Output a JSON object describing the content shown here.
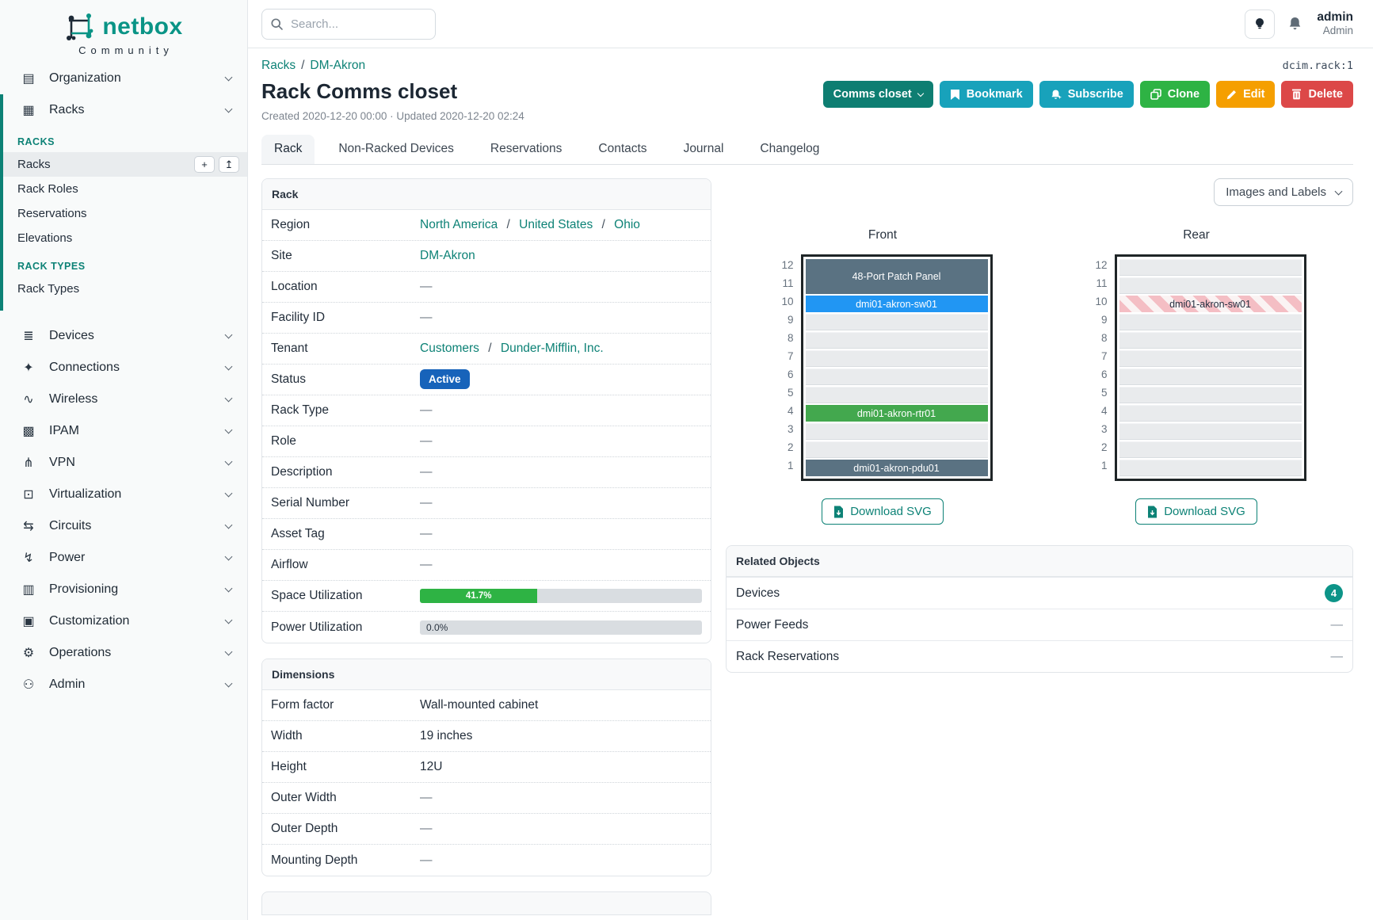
{
  "brand": {
    "name": "netbox",
    "subtitle": "Community"
  },
  "topbar": {
    "search_placeholder": "Search...",
    "username": "admin",
    "user_role": "Admin"
  },
  "breadcrumb": {
    "section": "Racks",
    "site": "DM-Akron",
    "object_ref": "dcim.rack:1"
  },
  "page": {
    "title": "Rack Comms closet",
    "meta": "Created 2020-12-20 00:00 · Updated 2020-12-20 02:24"
  },
  "actions": {
    "view_toggle": "Comms closet",
    "bookmark": "Bookmark",
    "subscribe": "Subscribe",
    "clone": "Clone",
    "edit": "Edit",
    "del": "Delete"
  },
  "tabs": {
    "rack": "Rack",
    "non_racked": "Non-Racked Devices",
    "reservations": "Reservations",
    "contacts": "Contacts",
    "journal": "Journal",
    "changelog": "Changelog"
  },
  "sidebar": {
    "organization": "Organization",
    "racks_parent": "Racks",
    "racks_group": {
      "header": "RACKS",
      "item_racks": "Racks",
      "item_rack_roles": "Rack Roles",
      "item_reservations": "Reservations",
      "item_elevations": "Elevations",
      "add_button": "+",
      "import_button": "↥"
    },
    "rack_types_group": {
      "header": "RACK TYPES",
      "item_rack_types": "Rack Types"
    },
    "bottom_items": [
      {
        "label": "Devices"
      },
      {
        "label": "Connections"
      },
      {
        "label": "Wireless"
      },
      {
        "label": "IPAM"
      },
      {
        "label": "VPN"
      },
      {
        "label": "Virtualization"
      },
      {
        "label": "Circuits"
      },
      {
        "label": "Power"
      },
      {
        "label": "Provisioning"
      },
      {
        "label": "Customization"
      },
      {
        "label": "Operations"
      },
      {
        "label": "Admin"
      }
    ],
    "icons": {
      "organization": "▤",
      "racks": "▦",
      "devices": "≣",
      "connections": "✦",
      "wireless": "∿",
      "ipam": "▩",
      "vpn": "⋔",
      "virtualization": "⊡",
      "circuits": "⇆",
      "power": "↯",
      "provisioning": "▥",
      "customization": "▣",
      "operations": "⚙",
      "admin": "⚇"
    }
  },
  "rack_panel": {
    "title": "Rack",
    "region_label": "Region",
    "region_links": [
      "North America",
      "United States",
      "Ohio"
    ],
    "site_label": "Site",
    "site_value": "DM-Akron",
    "location_label": "Location",
    "location_value": "—",
    "facility_label": "Facility ID",
    "facility_value": "—",
    "tenant_label": "Tenant",
    "tenant_links": [
      "Customers",
      "Dunder-Mifflin, Inc."
    ],
    "status_label": "Status",
    "status_value": "Active",
    "rack_type_label": "Rack Type",
    "rack_type_value": "—",
    "role_label": "Role",
    "role_value": "—",
    "description_label": "Description",
    "description_value": "—",
    "serial_label": "Serial Number",
    "serial_value": "—",
    "asset_label": "Asset Tag",
    "asset_value": "—",
    "airflow_label": "Airflow",
    "airflow_value": "—",
    "space_label": "Space Utilization",
    "space_percent": "41.7%",
    "power_label": "Power Utilization",
    "power_percent": "0.0%"
  },
  "dimensions_panel": {
    "title": "Dimensions",
    "form_factor_label": "Form factor",
    "form_factor_value": "Wall-mounted cabinet",
    "width_label": "Width",
    "width_value": "19 inches",
    "height_label": "Height",
    "height_value": "12U",
    "outer_width_label": "Outer Width",
    "outer_width_value": "—",
    "outer_depth_label": "Outer Depth",
    "outer_depth_value": "—",
    "mounting_depth_label": "Mounting Depth",
    "mounting_depth_value": "—"
  },
  "elevations": {
    "selector_label": "Images and Labels",
    "front_title": "Front",
    "rear_title": "Rear",
    "download_label": "Download SVG",
    "units": [
      "12",
      "11",
      "10",
      "9",
      "8",
      "7",
      "6",
      "5",
      "4",
      "3",
      "2",
      "1"
    ],
    "front_devices": {
      "patch_panel": "48-Port Patch Panel",
      "switch": "dmi01-akron-sw01",
      "router": "dmi01-akron-rtr01",
      "pdu": "dmi01-akron-pdu01"
    },
    "rear_devices": {
      "switch": "dmi01-akron-sw01"
    }
  },
  "related_objects": {
    "title": "Related Objects",
    "devices_label": "Devices",
    "devices_count": "4",
    "power_feeds_label": "Power Feeds",
    "power_feeds_value": "—",
    "reservations_label": "Rack Reservations",
    "reservations_value": "—"
  },
  "colors": {
    "brand_teal": "#0a9486",
    "link_teal": "#0d8276",
    "status_active_blue": "#1763ba",
    "utilization_green": "#2eb344",
    "device_slate": "#5a7282",
    "device_blue": "#2196f3",
    "device_green": "#43a84e",
    "count_badge_teal": "#0d9488"
  }
}
